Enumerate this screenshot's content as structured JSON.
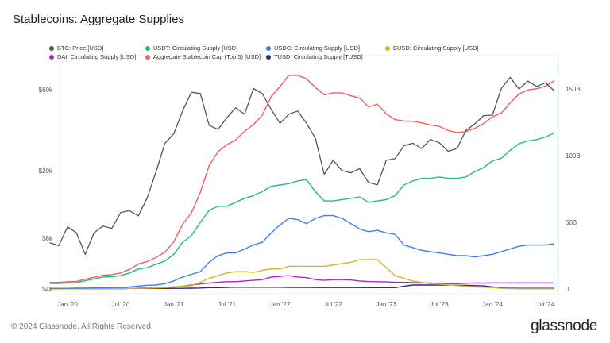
{
  "chart_data": {
    "type": "line",
    "title": "Stablecoins: Aggregate Supplies",
    "x_start": "2019-11",
    "x_end": "2024-08",
    "x_interval": "monthly",
    "x_ticks": [
      "Jan '20",
      "Jul '20",
      "Jan '21",
      "Jul '21",
      "Jan '22",
      "Jul '22",
      "Jan '23",
      "Jul '23",
      "Jan '24",
      "Jul '24"
    ],
    "y_left": {
      "scale": "log",
      "ticks": [
        "$4k",
        "$8k",
        "$20k",
        "$60k"
      ],
      "tick_values": [
        4000,
        8000,
        20000,
        60000
      ]
    },
    "y_right": {
      "scale": "linear",
      "ticks": [
        "0",
        "50B",
        "100B",
        "150B"
      ],
      "tick_values": [
        0,
        50,
        100,
        150
      ],
      "unit": "B"
    },
    "grid": false,
    "legend_placement": "top",
    "series": [
      {
        "name": "BTC: Price [USD]",
        "axis": "left",
        "color": "#555555",
        "values": [
          7500,
          7200,
          9300,
          8600,
          6400,
          8600,
          9400,
          9100,
          11300,
          11600,
          10800,
          13800,
          19700,
          29000,
          33000,
          45000,
          58000,
          57000,
          37000,
          35000,
          41000,
          47000,
          43000,
          61000,
          57000,
          46000,
          38000,
          43000,
          45000,
          38000,
          31000,
          19000,
          23000,
          20000,
          19400,
          20500,
          17000,
          16500,
          23000,
          23500,
          28000,
          29000,
          27000,
          30500,
          29200,
          26000,
          27000,
          34500,
          37700,
          42200,
          42500,
          61000,
          71000,
          60600,
          67500,
          62700,
          66000,
          59000
        ]
      },
      {
        "name": "USDT: Circulating Supply [USD]",
        "axis": "right",
        "color": "#1dbf7e",
        "values": [
          4.1,
          4.1,
          4.6,
          4.7,
          6.2,
          7.5,
          9,
          9.2,
          10,
          12,
          15,
          16,
          18.5,
          21,
          26,
          35,
          40,
          50,
          59,
          62,
          62,
          65,
          68,
          70,
          73,
          77,
          78,
          79,
          81,
          82,
          73,
          66,
          66,
          67,
          68,
          69,
          65,
          66,
          67,
          70,
          78,
          81,
          83,
          83,
          84,
          83,
          83,
          84,
          88,
          91,
          96,
          98,
          104,
          109,
          111,
          112,
          114,
          117
        ]
      },
      {
        "name": "USDC: Circulating Supply [USD]",
        "axis": "right",
        "color": "#3d7ff2",
        "values": [
          0.5,
          0.5,
          0.5,
          0.6,
          0.7,
          0.8,
          0.8,
          1,
          1.2,
          1.5,
          2.2,
          2.8,
          3,
          4,
          6,
          9,
          11,
          13,
          20,
          25,
          27,
          27,
          30,
          33,
          35,
          42,
          48,
          53,
          52,
          49,
          53,
          55,
          55,
          53,
          49,
          45,
          43,
          44,
          42,
          41,
          33,
          31,
          29,
          28,
          27,
          26,
          25,
          25,
          24,
          25,
          26,
          28,
          30,
          32,
          33,
          33,
          33,
          34
        ]
      },
      {
        "name": "BUSD: Circulating Supply [USD]",
        "axis": "right",
        "color": "#cdb828",
        "values": [
          0.05,
          0.05,
          0.1,
          0.1,
          0.15,
          0.15,
          0.2,
          0.2,
          0.3,
          0.4,
          0.5,
          0.6,
          0.8,
          1,
          1.5,
          2,
          2.5,
          5,
          8,
          10,
          12,
          13,
          13,
          12.5,
          14,
          15,
          15,
          17,
          17,
          17,
          17,
          17,
          18,
          19,
          20,
          22,
          22,
          22,
          16,
          10,
          8,
          6,
          5,
          4,
          3.5,
          3,
          2.5,
          2,
          1.5,
          1.3,
          1,
          0.5,
          0.3,
          0.1,
          0.1,
          0.1,
          0.1,
          0.1
        ]
      },
      {
        "name": "DAI: Circulating Supply [USD]",
        "axis": "right",
        "color": "#b81fcb",
        "values": [
          0.1,
          0.1,
          0.1,
          0.1,
          0.1,
          0.1,
          0.1,
          0.15,
          0.2,
          0.4,
          0.6,
          0.9,
          1,
          1.2,
          1.5,
          2,
          3,
          3.8,
          4.5,
          5,
          5.5,
          5.5,
          6,
          6.5,
          7,
          9,
          9.5,
          10,
          9,
          8.5,
          7,
          6.5,
          7,
          7,
          6.8,
          6,
          5.6,
          5.5,
          5.3,
          5,
          5,
          4.8,
          4.6,
          4.5,
          4.2,
          4,
          4,
          4.3,
          4.5,
          4.5,
          4.6,
          4.6,
          4.6,
          4.6,
          4.6,
          4.6,
          4.6,
          4.6
        ]
      },
      {
        "name": "Aggregate Stablecoin Cap (Top 5) [USD]",
        "axis": "right",
        "color": "#f45d5d",
        "values": [
          4.95,
          4.95,
          5.5,
          5.7,
          7.35,
          8.75,
          10.3,
          10.85,
          12,
          14.7,
          18.7,
          20.6,
          23.7,
          27.6,
          35.5,
          48.5,
          57.1,
          72.5,
          92.5,
          103,
          108.2,
          111.8,
          118.3,
          123.3,
          130.3,
          144.3,
          151.8,
          160.2,
          160.2,
          157.7,
          151.1,
          145.6,
          147.1,
          147.1,
          144.9,
          143.1,
          136.6,
          138.5,
          131.3,
          127,
          126,
          125.8,
          124.6,
          123,
          121.9,
          118.8,
          117.3,
          118,
          120.5,
          124.1,
          129.1,
          131.9,
          139.5,
          146.2,
          149.2,
          150.2,
          152.2,
          156.2
        ]
      },
      {
        "name": "TUSD: Circulating Supply [TUSD]",
        "axis": "right",
        "color": "#2b2a7c",
        "values": [
          0.2,
          0.2,
          0.2,
          0.2,
          0.2,
          0.2,
          0.2,
          0.3,
          0.3,
          0.4,
          0.4,
          0.4,
          0.4,
          0.4,
          0.5,
          0.5,
          0.6,
          0.7,
          1,
          1,
          1.2,
          1.3,
          1.3,
          1.3,
          1.3,
          1.3,
          1.3,
          1.2,
          1.2,
          1.2,
          1.1,
          1.1,
          1.1,
          1.1,
          1.1,
          1.1,
          1,
          1,
          1,
          1,
          2,
          3,
          3,
          3,
          3,
          2.8,
          2.8,
          2.7,
          2.5,
          2.3,
          1.5,
          0.8,
          0.6,
          0.5,
          0.5,
          0.5,
          0.5,
          0.5
        ]
      }
    ]
  },
  "footer": {
    "copyright": "© 2024 Glassnode. All Rights Reserved.",
    "brand": "glassnode"
  }
}
